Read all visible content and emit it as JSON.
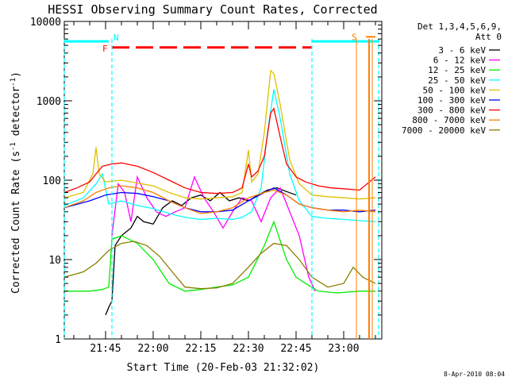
{
  "chart_data": {
    "type": "line",
    "title": "HESSI Observing Summary Count Rates, Corrected",
    "xlabel": "Start Time (20-Feb-03 21:32:02)",
    "ylabel_main": "Corrected Count Rate (s",
    "ylabel_sup1": "-1",
    "ylabel_mid": " detector",
    "ylabel_sup2": "-1",
    "ylabel_end": ")",
    "yscale": "log",
    "ylim": [
      1,
      10000
    ],
    "xlim": [
      "21:32",
      "23:12"
    ],
    "x_ticks": [
      "21:45",
      "22:00",
      "22:15",
      "22:30",
      "22:45",
      "23:00"
    ],
    "y_ticks": [
      "1",
      "10",
      "100",
      "1000",
      "10000"
    ],
    "timestamp": "8-Apr-2010 08:04",
    "legend": {
      "header1": "Det 1,3,4,5,6,9,",
      "header2": "Att 0",
      "entries": [
        {
          "label": "3 - 6 keV",
          "color": "#000000"
        },
        {
          "label": "6 - 12 keV",
          "color": "#ff00ff"
        },
        {
          "label": "12 - 25 keV",
          "color": "#00ee00"
        },
        {
          "label": "25 - 50 keV",
          "color": "#00ffff"
        },
        {
          "label": "50 - 100 keV",
          "color": "#e0c000"
        },
        {
          "label": "100 - 300 keV",
          "color": "#0000ff"
        },
        {
          "label": "300 - 800 keV",
          "color": "#ff0000"
        },
        {
          "label": "800 - 7000 keV",
          "color": "#ff8000"
        },
        {
          "label": "7000 - 20000 keV",
          "color": "#8b7d00"
        }
      ]
    },
    "flags": {
      "night_label": "N",
      "flare_label": "F",
      "saa_label": "S"
    },
    "series": [
      {
        "name": "3 - 6 keV",
        "color": "#000000",
        "x": [
          "21:45",
          "21:46",
          "21:47",
          "21:48",
          "21:50",
          "21:53",
          "21:55",
          "21:57",
          "22:00",
          "22:03",
          "22:06",
          "22:09",
          "22:12",
          "22:15",
          "22:18",
          "22:21",
          "22:24",
          "22:27",
          "22:30",
          "22:33",
          "22:36",
          "22:39",
          "22:42",
          "22:45"
        ],
        "values": [
          2,
          2.5,
          3,
          15,
          20,
          25,
          35,
          30,
          28,
          45,
          55,
          48,
          60,
          65,
          55,
          70,
          55,
          60,
          55,
          65,
          75,
          80,
          72,
          65
        ]
      },
      {
        "name": "6 - 12 keV",
        "color": "#ff00ff",
        "x": [
          "21:47",
          "21:49",
          "21:51",
          "21:53",
          "21:55",
          "21:58",
          "22:01",
          "22:04",
          "22:07",
          "22:10",
          "22:13",
          "22:16",
          "22:19",
          "22:22",
          "22:25",
          "22:28",
          "22:31",
          "22:34",
          "22:37",
          "22:40",
          "22:43",
          "22:46",
          "22:49",
          "22:51"
        ],
        "values": [
          20,
          90,
          70,
          30,
          110,
          60,
          40,
          35,
          40,
          45,
          110,
          60,
          40,
          25,
          40,
          60,
          55,
          30,
          60,
          80,
          40,
          20,
          6,
          4
        ]
      },
      {
        "name": "12 - 25 keV",
        "color": "#00ee00",
        "x": [
          "21:32",
          "21:40",
          "21:44",
          "21:46",
          "21:47",
          "21:50",
          "21:55",
          "22:00",
          "22:05",
          "22:10",
          "22:15",
          "22:20",
          "22:25",
          "22:30",
          "22:35",
          "22:38",
          "22:42",
          "22:45",
          "22:48",
          "22:52",
          "22:58",
          "23:05",
          "23:10"
        ],
        "values": [
          4,
          4,
          4.2,
          4.5,
          18,
          20,
          16,
          10,
          5,
          4,
          4.2,
          4.5,
          4.8,
          6,
          15,
          30,
          10,
          6,
          5,
          4,
          3.8,
          4,
          4
        ]
      },
      {
        "name": "25 - 50 keV",
        "color": "#00ffff",
        "x": [
          "21:32",
          "21:38",
          "21:42",
          "21:44",
          "21:46",
          "21:50",
          "21:55",
          "22:00",
          "22:05",
          "22:10",
          "22:15",
          "22:20",
          "22:25",
          "22:28",
          "22:31",
          "22:34",
          "22:36",
          "22:38",
          "22:40",
          "22:43",
          "22:46",
          "22:50",
          "22:55",
          "23:00",
          "23:05",
          "23:10"
        ],
        "values": [
          48,
          60,
          90,
          120,
          50,
          55,
          48,
          44,
          38,
          34,
          32,
          33,
          32,
          34,
          40,
          80,
          400,
          1400,
          600,
          120,
          55,
          35,
          33,
          32,
          31,
          30
        ]
      },
      {
        "name": "50 - 100 keV",
        "color": "#e0c000",
        "x": [
          "21:32",
          "21:38",
          "21:41",
          "21:42",
          "21:43",
          "21:45",
          "21:50",
          "21:55",
          "22:00",
          "22:05",
          "22:10",
          "22:15",
          "22:20",
          "22:25",
          "22:28",
          "22:30",
          "22:31",
          "22:33",
          "22:35",
          "22:37",
          "22:38",
          "22:40",
          "22:43",
          "22:46",
          "22:50",
          "22:55",
          "23:00",
          "23:05",
          "23:10"
        ],
        "values": [
          60,
          70,
          120,
          260,
          120,
          95,
          100,
          92,
          85,
          70,
          60,
          58,
          60,
          62,
          70,
          240,
          95,
          120,
          400,
          2400,
          2200,
          900,
          180,
          90,
          65,
          62,
          60,
          58,
          60
        ]
      },
      {
        "name": "100 - 300 keV",
        "color": "#0000ff",
        "x": [
          "21:32",
          "21:40",
          "21:45",
          "21:50",
          "21:55",
          "22:00",
          "22:05",
          "22:10",
          "22:15",
          "22:20",
          "22:25",
          "22:30",
          "22:35",
          "22:38",
          "22:42",
          "22:46",
          "22:50",
          "22:55",
          "23:00",
          "23:05",
          "23:10"
        ],
        "values": [
          45,
          55,
          65,
          70,
          68,
          62,
          55,
          45,
          40,
          40,
          42,
          55,
          70,
          80,
          65,
          50,
          45,
          42,
          42,
          40,
          42
        ]
      },
      {
        "name": "300 - 800 keV",
        "color": "#ff0000",
        "x": [
          "21:32",
          "21:36",
          "21:40",
          "21:42",
          "21:44",
          "21:47",
          "21:50",
          "21:55",
          "22:00",
          "22:05",
          "22:10",
          "22:15",
          "22:20",
          "22:25",
          "22:28",
          "22:30",
          "22:31",
          "22:33",
          "22:35",
          "22:37",
          "22:38",
          "22:40",
          "22:42",
          "22:45",
          "22:48",
          "22:52",
          "22:56",
          "23:00",
          "23:05",
          "23:10"
        ],
        "values": [
          70,
          80,
          95,
          120,
          150,
          160,
          165,
          150,
          125,
          100,
          80,
          70,
          68,
          70,
          80,
          160,
          110,
          130,
          200,
          700,
          800,
          350,
          160,
          110,
          95,
          85,
          80,
          78,
          75,
          110
        ]
      },
      {
        "name": "800 - 7000 keV",
        "color": "#ff8000",
        "x": [
          "21:32",
          "21:38",
          "21:42",
          "21:46",
          "21:50",
          "21:55",
          "22:00",
          "22:05",
          "22:10",
          "22:15",
          "22:20",
          "22:25",
          "22:30",
          "22:35",
          "22:38",
          "22:42",
          "22:46",
          "22:50",
          "22:55",
          "23:00",
          "23:05",
          "23:10"
        ],
        "values": [
          45,
          55,
          70,
          80,
          85,
          80,
          70,
          55,
          45,
          38,
          40,
          45,
          60,
          70,
          75,
          65,
          50,
          45,
          42,
          40,
          42,
          40
        ]
      },
      {
        "name": "7000 - 20000 keV",
        "color": "#8b7d00",
        "x": [
          "21:32",
          "21:38",
          "21:42",
          "21:46",
          "21:50",
          "21:54",
          "21:58",
          "22:02",
          "22:06",
          "22:10",
          "22:15",
          "22:20",
          "22:25",
          "22:30",
          "22:34",
          "22:38",
          "22:42",
          "22:46",
          "22:50",
          "22:55",
          "23:00",
          "23:03",
          "23:06",
          "23:10"
        ],
        "values": [
          6,
          7,
          9,
          13,
          16,
          17,
          15,
          11,
          7,
          4.5,
          4.3,
          4.4,
          5,
          8,
          12,
          16,
          15,
          10,
          6,
          4.5,
          5,
          8,
          6,
          5
        ]
      }
    ]
  }
}
